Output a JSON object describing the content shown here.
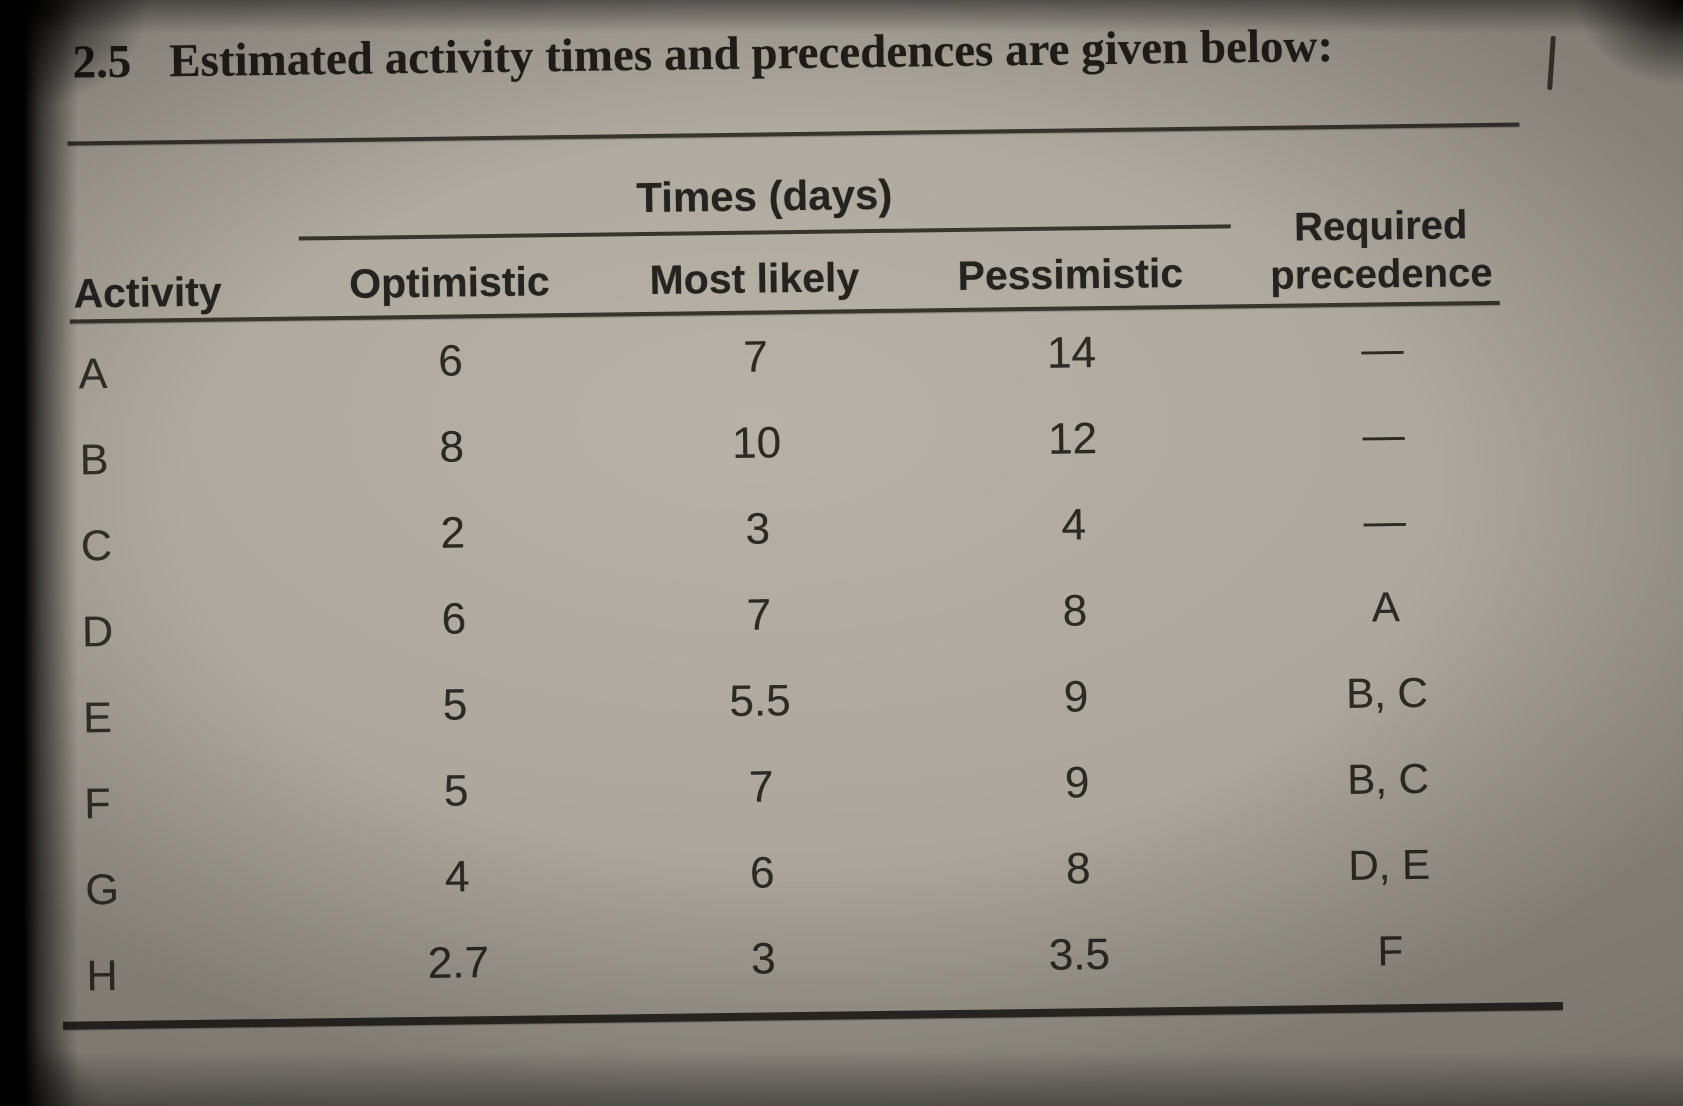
{
  "title": {
    "number": "2.5",
    "text": "Estimated activity times and precedences are given below:"
  },
  "table": {
    "times_group_header": "Times (days)",
    "required_precedence_header": "Required\nprecedence",
    "columns": {
      "activity": "Activity",
      "optimistic": "Optimistic",
      "most_likely": "Most likely",
      "pessimistic": "Pessimistic"
    },
    "rows": [
      {
        "activity": "A",
        "optimistic": "6",
        "most_likely": "7",
        "pessimistic": "14",
        "precedence": "—"
      },
      {
        "activity": "B",
        "optimistic": "8",
        "most_likely": "10",
        "pessimistic": "12",
        "precedence": "—"
      },
      {
        "activity": "C",
        "optimistic": "2",
        "most_likely": "3",
        "pessimistic": "4",
        "precedence": "—"
      },
      {
        "activity": "D",
        "optimistic": "6",
        "most_likely": "7",
        "pessimistic": "8",
        "precedence": "A"
      },
      {
        "activity": "E",
        "optimistic": "5",
        "most_likely": "5.5",
        "pessimistic": "9",
        "precedence": "B, C"
      },
      {
        "activity": "F",
        "optimistic": "5",
        "most_likely": "7",
        "pessimistic": "9",
        "precedence": "B, C"
      },
      {
        "activity": "G",
        "optimistic": "4",
        "most_likely": "6",
        "pessimistic": "8",
        "precedence": "D, E"
      },
      {
        "activity": "H",
        "optimistic": "2.7",
        "most_likely": "3",
        "pessimistic": "3.5",
        "precedence": "F"
      }
    ]
  }
}
